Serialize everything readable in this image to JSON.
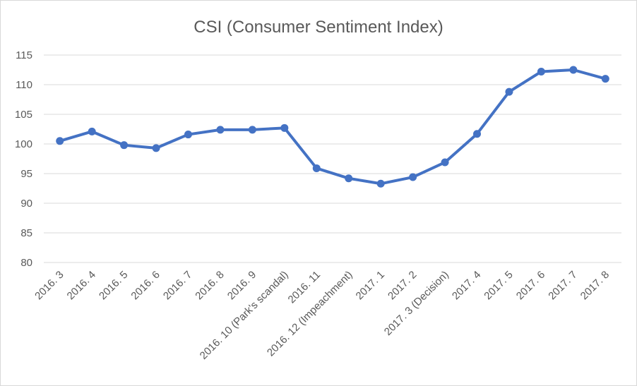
{
  "chart_data": {
    "type": "line",
    "title": "CSI (Consumer Sentiment Index)",
    "xlabel": "",
    "ylabel": "",
    "ylim": [
      80,
      115
    ],
    "yticks": [
      80,
      85,
      90,
      95,
      100,
      105,
      110,
      115
    ],
    "grid": true,
    "legend": "none",
    "categories": [
      "2016. 3",
      "2016. 4",
      "2016. 5",
      "2016. 6",
      "2016. 7",
      "2016. 8",
      "2016. 9",
      "2016. 10 (Park's scandal)",
      "2016. 11",
      "2016. 12 (Impeachment)",
      "2017. 1",
      "2017. 2",
      "2017. 3 (Decision)",
      "2017. 4",
      "2017. 5",
      "2017. 6",
      "2017. 7",
      "2017. 8"
    ],
    "series": [
      {
        "color": "#4472c4",
        "values": [
          100.5,
          102.1,
          99.8,
          99.3,
          101.6,
          102.4,
          102.4,
          102.7,
          95.9,
          94.2,
          93.3,
          94.4,
          96.9,
          101.7,
          108.8,
          112.2,
          112.5,
          111.0
        ]
      }
    ]
  }
}
